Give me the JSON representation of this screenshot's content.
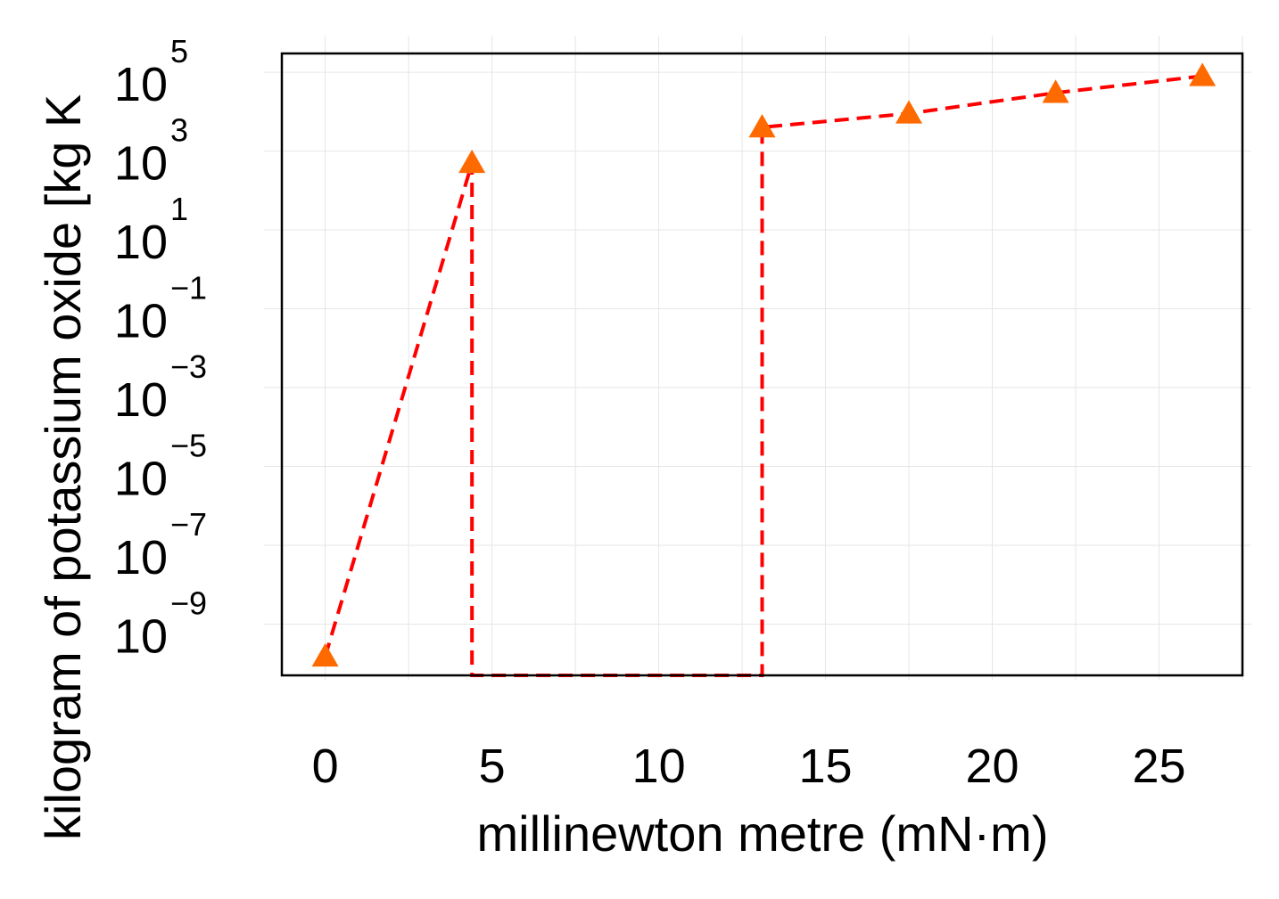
{
  "chart_data": {
    "type": "line",
    "xlabel": "millinewton metre (mN·m)",
    "ylabel": "kilogram of potassium oxide [kg K",
    "x_ticks": [
      0,
      5,
      10,
      15,
      20,
      25
    ],
    "y_ticks": [
      {
        "base": "10",
        "exp": "5",
        "value": 100000
      },
      {
        "base": "10",
        "exp": "3",
        "value": 1000
      },
      {
        "base": "10",
        "exp": "1",
        "value": 10
      },
      {
        "base": "10",
        "exp": "−1",
        "value": 0.1
      },
      {
        "base": "10",
        "exp": "−3",
        "value": 0.001
      },
      {
        "base": "10",
        "exp": "−5",
        "value": 1e-05
      },
      {
        "base": "10",
        "exp": "−7",
        "value": 1e-07
      },
      {
        "base": "10",
        "exp": "−9",
        "value": 1e-09
      }
    ],
    "xlim": [
      -1.3,
      27.5
    ],
    "ylim": [
      5e-11,
      300000.0
    ],
    "y_scale": "log",
    "grid": true,
    "legend": "none",
    "series": [
      {
        "points": [
          {
            "x": 0,
            "y": 1.5e-10
          },
          {
            "x": 4.4,
            "y": 500
          },
          {
            "x": 4.4,
            "y": 5e-11
          },
          {
            "x": 13.1,
            "y": 5e-11
          },
          {
            "x": 13.1,
            "y": 4000
          },
          {
            "x": 17.5,
            "y": 9000
          },
          {
            "x": 21.9,
            "y": 30000
          },
          {
            "x": 26.3,
            "y": 80000
          }
        ],
        "markers": [
          {
            "x": 0,
            "y": 1.5e-10
          },
          {
            "x": 4.4,
            "y": 500
          },
          {
            "x": 13.1,
            "y": 4000
          },
          {
            "x": 17.5,
            "y": 9000
          },
          {
            "x": 21.9,
            "y": 30000
          },
          {
            "x": 26.3,
            "y": 80000
          }
        ],
        "line_color": "#ff0000",
        "line_style": "dashed",
        "marker": "triangle",
        "marker_color": "#ff6a00"
      }
    ]
  }
}
